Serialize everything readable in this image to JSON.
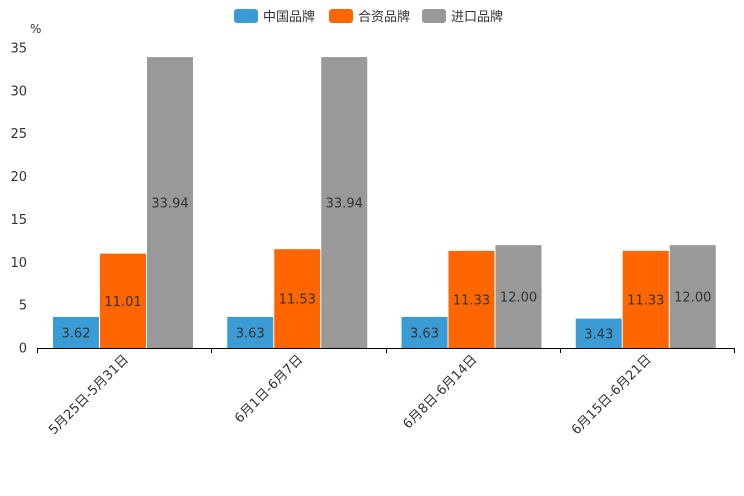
{
  "chart_data": {
    "type": "bar",
    "title": "",
    "xlabel": "",
    "ylabel": "%",
    "ylim": [
      0,
      35
    ],
    "yticks": [
      0,
      5,
      10,
      15,
      20,
      25,
      30,
      35
    ],
    "grid": false,
    "legend_position": "top-center",
    "categories": [
      "5月25日-5月31日",
      "6月1日-6月7日",
      "6月8日-6月14日",
      "6月15日-6月21日"
    ],
    "series": [
      {
        "name": "中国品牌",
        "color": "#3a9bd5",
        "values": [
          3.62,
          3.63,
          3.63,
          3.43
        ]
      },
      {
        "name": "合资品牌",
        "color": "#ff6600",
        "values": [
          11.01,
          11.53,
          11.33,
          11.33
        ]
      },
      {
        "name": "进口品牌",
        "color": "#999999",
        "values": [
          33.94,
          33.94,
          12.0,
          12.0
        ]
      }
    ]
  }
}
